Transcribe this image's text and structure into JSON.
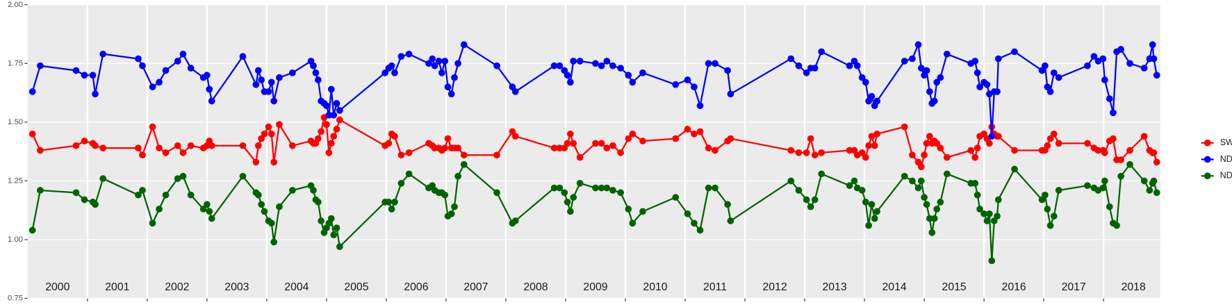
{
  "chart_data": {
    "type": "line",
    "x": [
      2000.08,
      2000.21,
      2000.81,
      2000.95,
      2001.09,
      2001.13,
      2001.26,
      2001.85,
      2001.92,
      2002.09,
      2002.2,
      2002.31,
      2002.51,
      2002.6,
      2002.73,
      2002.94,
      2003.0,
      2003.04,
      2003.08,
      2003.6,
      2003.82,
      2003.86,
      2003.91,
      2003.96,
      2004.03,
      2004.08,
      2004.12,
      2004.21,
      2004.43,
      2004.74,
      2004.78,
      2004.82,
      2004.86,
      2004.91,
      2004.96,
      2005.0,
      2005.04,
      2005.08,
      2005.12,
      2005.17,
      2005.22,
      2005.98,
      2006.04,
      2006.09,
      2006.14,
      2006.25,
      2006.38,
      2006.71,
      2006.77,
      2006.81,
      2006.88,
      2006.93,
      2006.98,
      2007.03,
      2007.09,
      2007.14,
      2007.2,
      2007.3,
      2007.85,
      2008.11,
      2008.16,
      2008.81,
      2008.9,
      2008.98,
      2009.03,
      2009.08,
      2009.13,
      2009.24,
      2009.5,
      2009.6,
      2009.69,
      2009.79,
      2009.92,
      2010.05,
      2010.12,
      2010.29,
      2010.84,
      2011.04,
      2011.15,
      2011.25,
      2011.39,
      2011.5,
      2011.71,
      2011.76,
      2012.77,
      2012.9,
      2013.03,
      2013.1,
      2013.17,
      2013.28,
      2013.75,
      2013.83,
      2013.88,
      2013.96,
      2014.02,
      2014.07,
      2014.12,
      2014.17,
      2014.21,
      2014.67,
      2014.8,
      2014.9,
      2014.95,
      2015.0,
      2015.04,
      2015.09,
      2015.13,
      2015.17,
      2015.21,
      2015.27,
      2015.38,
      2015.78,
      2015.85,
      2015.89,
      2015.93,
      2016.0,
      2016.05,
      2016.09,
      2016.13,
      2016.17,
      2016.22,
      2016.24,
      2016.51,
      2016.97,
      2017.02,
      2017.06,
      2017.11,
      2017.17,
      2017.25,
      2017.73,
      2017.84,
      2017.91,
      2017.99,
      2018.02,
      2018.1,
      2018.16,
      2018.22,
      2018.29,
      2018.44,
      2018.68,
      2018.77,
      2018.82,
      2018.84,
      2018.89
    ],
    "series": [
      {
        "name": "SWIR",
        "color": "#ff0000",
        "values": [
          1.45,
          1.38,
          1.4,
          1.42,
          1.41,
          1.4,
          1.39,
          1.39,
          1.36,
          1.48,
          1.39,
          1.37,
          1.4,
          1.37,
          1.4,
          1.39,
          1.4,
          1.42,
          1.4,
          1.4,
          1.33,
          1.4,
          1.43,
          1.45,
          1.48,
          1.45,
          1.33,
          1.49,
          1.4,
          1.42,
          1.41,
          1.41,
          1.43,
          1.46,
          1.52,
          1.49,
          1.37,
          1.41,
          1.44,
          1.47,
          1.51,
          1.4,
          1.41,
          1.45,
          1.44,
          1.36,
          1.37,
          1.41,
          1.4,
          1.39,
          1.39,
          1.38,
          1.39,
          1.43,
          1.39,
          1.39,
          1.39,
          1.36,
          1.36,
          1.46,
          1.44,
          1.39,
          1.39,
          1.39,
          1.41,
          1.45,
          1.41,
          1.35,
          1.41,
          1.41,
          1.39,
          1.4,
          1.37,
          1.43,
          1.45,
          1.42,
          1.43,
          1.47,
          1.45,
          1.46,
          1.39,
          1.38,
          1.42,
          1.43,
          1.38,
          1.37,
          1.37,
          1.43,
          1.36,
          1.37,
          1.38,
          1.38,
          1.36,
          1.37,
          1.35,
          1.4,
          1.44,
          1.4,
          1.45,
          1.48,
          1.36,
          1.33,
          1.31,
          1.36,
          1.41,
          1.44,
          1.41,
          1.42,
          1.41,
          1.39,
          1.35,
          1.38,
          1.35,
          1.39,
          1.44,
          1.45,
          1.43,
          1.41,
          1.48,
          1.45,
          1.44,
          1.44,
          1.38,
          1.38,
          1.38,
          1.4,
          1.43,
          1.45,
          1.41,
          1.41,
          1.39,
          1.38,
          1.38,
          1.37,
          1.42,
          1.43,
          1.34,
          1.34,
          1.38,
          1.44,
          1.38,
          1.37,
          1.37,
          1.33
        ]
      },
      {
        "name": "NDVI",
        "color": "#0000ff",
        "values": [
          1.63,
          1.74,
          1.72,
          1.7,
          1.7,
          1.62,
          1.79,
          1.77,
          1.74,
          1.65,
          1.67,
          1.72,
          1.76,
          1.79,
          1.73,
          1.69,
          1.7,
          1.64,
          1.59,
          1.78,
          1.66,
          1.72,
          1.68,
          1.63,
          1.63,
          1.67,
          1.59,
          1.69,
          1.71,
          1.76,
          1.74,
          1.71,
          1.68,
          1.59,
          1.58,
          1.57,
          1.53,
          1.64,
          1.53,
          1.58,
          1.55,
          1.71,
          1.73,
          1.74,
          1.71,
          1.78,
          1.79,
          1.75,
          1.77,
          1.74,
          1.76,
          1.71,
          1.76,
          1.65,
          1.62,
          1.69,
          1.75,
          1.83,
          1.74,
          1.65,
          1.63,
          1.74,
          1.74,
          1.72,
          1.7,
          1.67,
          1.76,
          1.76,
          1.75,
          1.74,
          1.76,
          1.74,
          1.73,
          1.7,
          1.67,
          1.71,
          1.66,
          1.68,
          1.65,
          1.57,
          1.75,
          1.75,
          1.72,
          1.62,
          1.77,
          1.74,
          1.71,
          1.73,
          1.73,
          1.8,
          1.74,
          1.76,
          1.74,
          1.69,
          1.67,
          1.59,
          1.61,
          1.57,
          1.59,
          1.76,
          1.77,
          1.83,
          1.73,
          1.7,
          1.72,
          1.63,
          1.58,
          1.59,
          1.67,
          1.69,
          1.79,
          1.75,
          1.76,
          1.71,
          1.65,
          1.67,
          1.66,
          1.62,
          1.44,
          1.63,
          1.63,
          1.77,
          1.8,
          1.72,
          1.74,
          1.65,
          1.63,
          1.71,
          1.69,
          1.74,
          1.78,
          1.76,
          1.77,
          1.68,
          1.6,
          1.54,
          1.8,
          1.81,
          1.75,
          1.73,
          1.77,
          1.83,
          1.77,
          1.7
        ]
      },
      {
        "name": "NDWI",
        "color": "#006400",
        "values": [
          1.04,
          1.21,
          1.2,
          1.17,
          1.16,
          1.15,
          1.26,
          1.19,
          1.21,
          1.07,
          1.13,
          1.19,
          1.26,
          1.27,
          1.19,
          1.13,
          1.15,
          1.12,
          1.09,
          1.27,
          1.2,
          1.19,
          1.15,
          1.12,
          1.08,
          1.07,
          0.99,
          1.14,
          1.21,
          1.23,
          1.21,
          1.17,
          1.16,
          1.08,
          1.03,
          1.05,
          1.07,
          1.09,
          1.02,
          1.05,
          0.97,
          1.16,
          1.16,
          1.13,
          1.16,
          1.24,
          1.28,
          1.22,
          1.23,
          1.21,
          1.2,
          1.2,
          1.19,
          1.1,
          1.11,
          1.14,
          1.27,
          1.32,
          1.2,
          1.07,
          1.08,
          1.22,
          1.22,
          1.2,
          1.16,
          1.12,
          1.18,
          1.24,
          1.22,
          1.22,
          1.22,
          1.21,
          1.2,
          1.13,
          1.07,
          1.12,
          1.18,
          1.11,
          1.07,
          1.04,
          1.22,
          1.22,
          1.15,
          1.08,
          1.25,
          1.21,
          1.17,
          1.14,
          1.17,
          1.28,
          1.23,
          1.25,
          1.22,
          1.21,
          1.16,
          1.06,
          1.15,
          1.09,
          1.12,
          1.27,
          1.25,
          1.22,
          1.25,
          1.18,
          1.15,
          1.09,
          1.03,
          1.09,
          1.13,
          1.16,
          1.28,
          1.24,
          1.24,
          1.19,
          1.13,
          1.11,
          1.08,
          1.11,
          0.91,
          1.08,
          1.1,
          1.17,
          1.3,
          1.17,
          1.19,
          1.13,
          1.06,
          1.1,
          1.21,
          1.23,
          1.22,
          1.21,
          1.22,
          1.25,
          1.14,
          1.07,
          1.06,
          1.27,
          1.32,
          1.25,
          1.21,
          1.24,
          1.25,
          1.2
        ]
      }
    ],
    "xlim": [
      2000,
      2018.95
    ],
    "xticks": [
      2001,
      2002,
      2003,
      2004,
      2005,
      2006,
      2007,
      2008,
      2009,
      2010,
      2011,
      2012,
      2013,
      2014,
      2015,
      2016,
      2017,
      2018
    ],
    "year_labels": [
      "2000",
      "2001",
      "2002",
      "2003",
      "2004",
      "2005",
      "2006",
      "2007",
      "2008",
      "2009",
      "2010",
      "2011",
      "2012",
      "2013",
      "2014",
      "2015",
      "2016",
      "2017",
      "2018"
    ],
    "ylim": [
      0.75,
      2.0
    ],
    "yticks": [
      {
        "value": 0.75,
        "label": "0.75"
      },
      {
        "value": 1,
        "label": "1.00"
      },
      {
        "value": 1.25,
        "label": "1.25"
      },
      {
        "value": 1.5,
        "label": "1.50"
      },
      {
        "value": 1.75,
        "label": "1.75"
      },
      {
        "value": 2,
        "label": "2.00"
      }
    ],
    "grid": true,
    "legend": "right"
  }
}
